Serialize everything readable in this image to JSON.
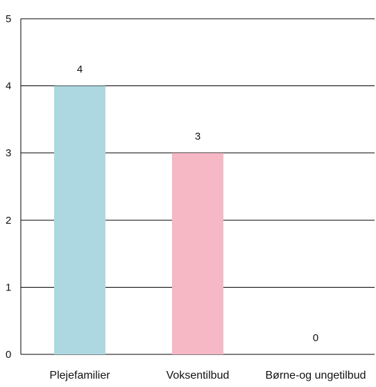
{
  "chart_data": {
    "type": "bar",
    "categories": [
      "Plejefamilier",
      "Voksentilbud",
      "Børne-og ungetilbud"
    ],
    "values": [
      4,
      3,
      0
    ],
    "data_labels": [
      "4",
      "3",
      "0"
    ],
    "colors": [
      "#add8e2",
      "#f5b8c4",
      "#e6e6e6"
    ],
    "title": "",
    "xlabel": "",
    "ylabel": "",
    "ylim": [
      0,
      5
    ],
    "yticks": [
      0,
      1,
      2,
      3,
      4,
      5
    ],
    "ytick_labels": [
      "0",
      "1",
      "2",
      "3",
      "4",
      "5"
    ],
    "grid": true,
    "gridline_color": "#000000",
    "legend": "none"
  }
}
